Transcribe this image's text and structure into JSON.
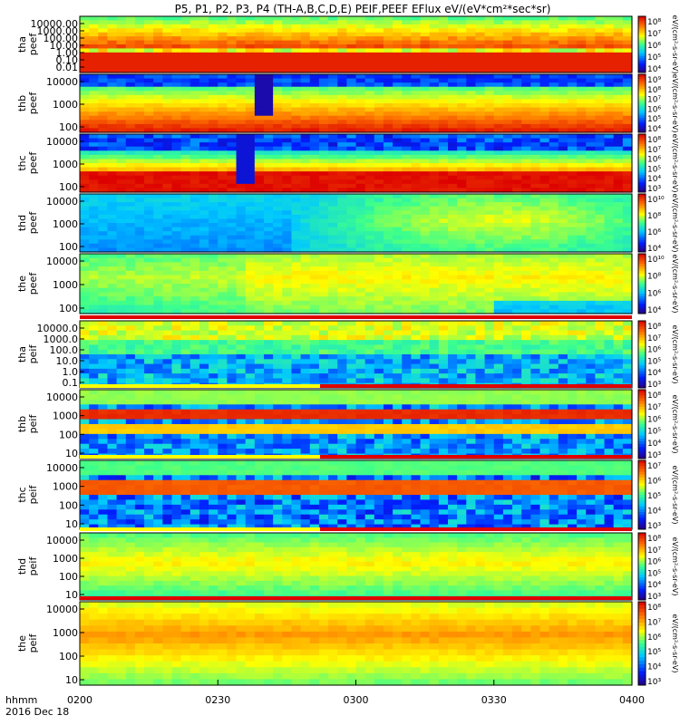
{
  "title": "P5, P1, P2, P3, P4 (TH-A,B,C,D,E) PEIF,PEEF EFlux eV/(eV*cm²*sec*sr)",
  "time_axis": {
    "row1_label": "hhmm",
    "row2_label": "2016 Dec 18",
    "ticks": [
      "0200",
      "0230",
      "0300",
      "0330",
      "0400"
    ]
  },
  "panels": [
    {
      "id": "tha-peef",
      "label": [
        "tha",
        "peef"
      ],
      "yticks": [
        "10000.00",
        "1000.00",
        "100.00",
        "10.00",
        "1.00",
        "0.10",
        "0.01"
      ],
      "colorbar_ticks": [
        "10⁸",
        "10⁷",
        "10⁶",
        "10⁵",
        "10⁴"
      ],
      "colorbar_label": "eV/(cm²-s-sr-eV)"
    },
    {
      "id": "thb-peef",
      "label": [
        "thb",
        "peef"
      ],
      "yticks": [
        "10000",
        "1000",
        "100"
      ],
      "colorbar_ticks": [
        "10⁹",
        "10⁸",
        "10⁷",
        "10⁶",
        "10⁵",
        "10⁴"
      ],
      "colorbar_label": "eV/(cm²-s-sr-eV)"
    },
    {
      "id": "thc-peef",
      "label": [
        "thc",
        "peef"
      ],
      "yticks": [
        "10000",
        "1000",
        "100"
      ],
      "colorbar_ticks": [
        "10⁸",
        "10⁷",
        "10⁶",
        "10⁵",
        "10⁴",
        "10³"
      ],
      "colorbar_label": "eV/(cm²-s-sr-eV)"
    },
    {
      "id": "thd-peef",
      "label": [
        "thd",
        "peef"
      ],
      "yticks": [
        "10000",
        "1000",
        "100"
      ],
      "colorbar_ticks": [
        "10¹⁰",
        "10⁸",
        "10⁶",
        "10⁴"
      ],
      "colorbar_label": "eV/(cm²-s-sr-eV)"
    },
    {
      "id": "the-peef",
      "label": [
        "the",
        "peef"
      ],
      "yticks": [
        "10000",
        "1000",
        "100"
      ],
      "colorbar_ticks": [
        "10¹⁰",
        "10⁸",
        "10⁶",
        "10⁴"
      ],
      "colorbar_label": "eV/(cm²-s-sr-eV)"
    },
    {
      "id": "tha-peif",
      "label": [
        "tha",
        "peif"
      ],
      "yticks": [
        "10000.0",
        "1000.0",
        "100.0",
        "10.0",
        "1.0",
        "0.1"
      ],
      "colorbar_ticks": [
        "10⁸",
        "10⁷",
        "10⁶",
        "10⁵",
        "10⁴",
        "10³"
      ],
      "colorbar_label": "eV/(cm²-s-sr-eV)"
    },
    {
      "id": "thb-peif",
      "label": [
        "thb",
        "peif"
      ],
      "yticks": [
        "10000",
        "1000",
        "100",
        "10"
      ],
      "colorbar_ticks": [
        "10⁸",
        "10⁷",
        "10⁶",
        "10⁵",
        "10⁴",
        "10³"
      ],
      "colorbar_label": "eV/(cm²-s-sr-eV)"
    },
    {
      "id": "thc-peif",
      "label": [
        "thc",
        "peif"
      ],
      "yticks": [
        "10000",
        "1000",
        "100",
        "10"
      ],
      "colorbar_ticks": [
        "10⁷",
        "10⁶",
        "10⁵",
        "10⁴",
        "10³"
      ],
      "colorbar_label": "eV/(cm²-s-sr-eV)"
    },
    {
      "id": "thd-peif",
      "label": [
        "thd",
        "peif"
      ],
      "yticks": [
        "10000",
        "1000",
        "100",
        "10"
      ],
      "colorbar_ticks": [
        "10⁸",
        "10⁷",
        "10⁶",
        "10⁵",
        "10⁴",
        "10³"
      ],
      "colorbar_label": "eV/(cm²-s-sr-eV)"
    },
    {
      "id": "the-peif",
      "label": [
        "the",
        "peif"
      ],
      "yticks": [
        "10000",
        "1000",
        "100",
        "10"
      ],
      "colorbar_ticks": [
        "10⁸",
        "10⁷",
        "10⁶",
        "10⁵",
        "10⁴",
        "10³"
      ],
      "colorbar_label": "eV/(cm²-s-sr-eV)"
    }
  ],
  "chart_data": {
    "type": "heatmap",
    "title": "P5, P1, P2, P3, P4 (TH-A,B,C,D,E) PEIF,PEEF EFlux eV/(eV*cm²*sec*sr)",
    "x_range": [
      "0200",
      "0400"
    ],
    "x_ticks": [
      "0200",
      "0230",
      "0300",
      "0330",
      "0400"
    ],
    "y_scale": "log",
    "z_scale": "log",
    "colormap": [
      "#200080",
      "#0040ff",
      "#00c0ff",
      "#40ff80",
      "#ffff00",
      "#ff8000",
      "#e00000"
    ],
    "panels_count": 10
  }
}
